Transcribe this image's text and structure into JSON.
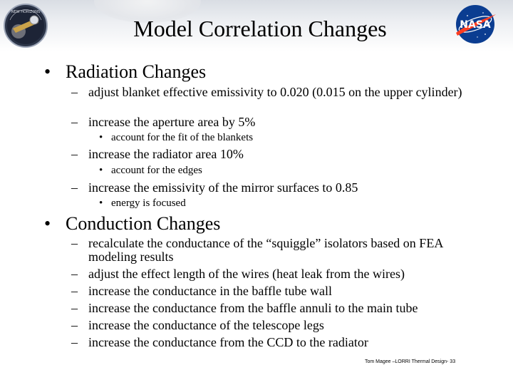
{
  "slide": {
    "title": "Model Correlation Changes",
    "radiation": {
      "heading": "Radiation Changes",
      "items": [
        {
          "text": "adjust blanket effective emissivity to 0.020 (0.015 on the upper cylinder)",
          "subitems": []
        },
        {
          "text": "increase the aperture area by 5%",
          "subitems": [
            "account for the fit of the blankets"
          ]
        },
        {
          "text": "increase the radiator area 10%",
          "subitems": [
            "account for the edges"
          ]
        },
        {
          "text": "increase the emissivity of the mirror surfaces to 0.85",
          "subitems": [
            "energy is focused"
          ]
        }
      ]
    },
    "conduction": {
      "heading": "Conduction Changes",
      "items": [
        "recalculate the conductance of the “squiggle” isolators based on FEA modeling results",
        "adjust the effect length of the wires (heat leak from the wires)",
        "increase the conductance in the baffle tube wall",
        "increase the conductance from the baffle annuli to the main tube",
        "increase the conductance of the telescope legs",
        "increase the conductance from the CCD to the radiator"
      ]
    },
    "footer": "Tom Magee –LORRI Thermal Design- 33",
    "symbols": {
      "bullet": "•",
      "dash": "–"
    },
    "logos": {
      "left": {
        "icon": "new-horizons-mission-patch",
        "text": "NEW HORIZONS"
      },
      "right": {
        "icon": "nasa-meatball-logo",
        "text": "NASA"
      }
    },
    "colors": {
      "header_gradient_top": "#d9dde4",
      "nasa_blue": "#0b3d91",
      "nasa_red": "#fc3d21"
    }
  }
}
